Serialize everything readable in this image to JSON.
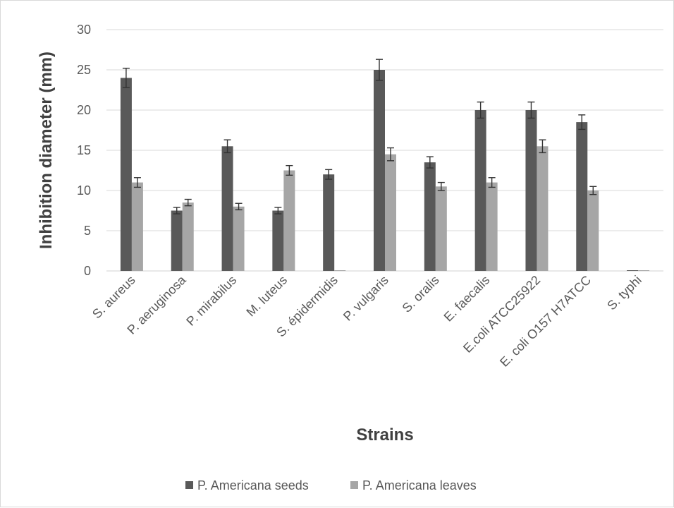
{
  "chart_data": {
    "type": "bar",
    "title": "",
    "xlabel": "Strains",
    "ylabel": "Inhibition diameter (mm)",
    "ylim": [
      0,
      30
    ],
    "yticks": [
      0,
      5,
      10,
      15,
      20,
      25,
      30
    ],
    "grid": true,
    "legend_position": "bottom",
    "categories": [
      "S. aureus",
      "P. aeruginosa",
      "P. mirabilus",
      "M. luteus",
      "S. épidermidis",
      "P. vulgaris",
      "S. oralis",
      "E. faecalis",
      "E.coli ATCC25922",
      "E. coli O157 H7ATCC",
      "S. typhi"
    ],
    "series": [
      {
        "name": "P. Americana seeds",
        "color": "#595959",
        "values": [
          24,
          7.5,
          15.5,
          7.5,
          12,
          25,
          13.5,
          20,
          20,
          18.5,
          0
        ],
        "errors": [
          1.2,
          0.4,
          0.8,
          0.4,
          0.6,
          1.3,
          0.7,
          1.0,
          1.0,
          0.9,
          0
        ]
      },
      {
        "name": "P. Americana leaves",
        "color": "#a6a6a6",
        "values": [
          11,
          8.5,
          8,
          12.5,
          0,
          14.5,
          10.5,
          11,
          15.5,
          10,
          0
        ],
        "errors": [
          0.6,
          0.4,
          0.4,
          0.6,
          0,
          0.8,
          0.5,
          0.6,
          0.8,
          0.5,
          0
        ]
      }
    ]
  }
}
